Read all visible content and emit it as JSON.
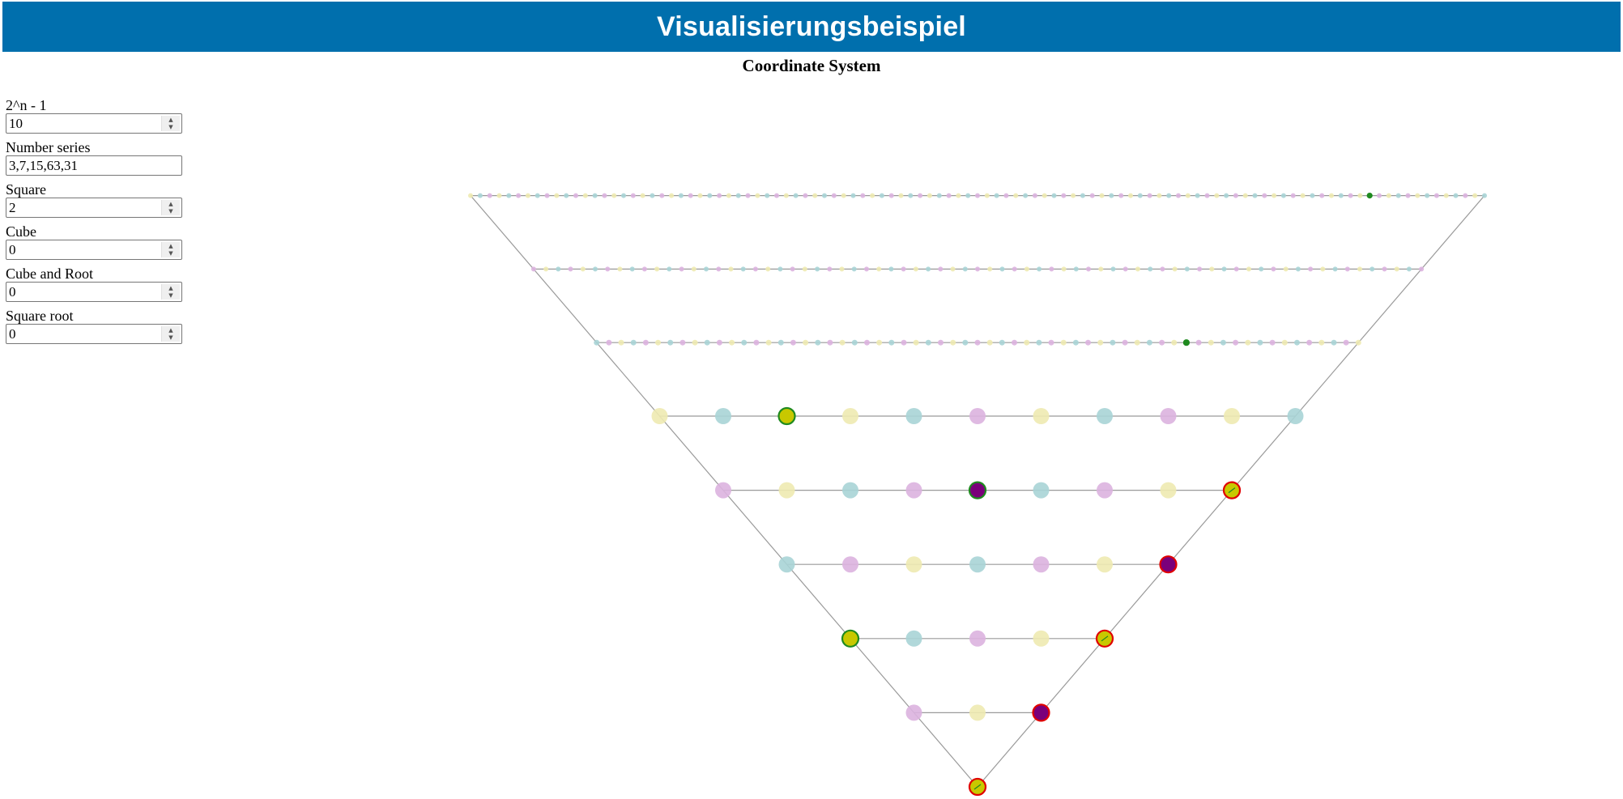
{
  "header": {
    "title": "Visualisierungsbeispiel"
  },
  "chart_title": "Coordinate System",
  "controls": [
    {
      "label": "2^n - 1",
      "value": "10",
      "type": "number"
    },
    {
      "label": "Number series",
      "value": "3,7,15,63,31",
      "type": "text"
    },
    {
      "label": "Square",
      "value": "2",
      "type": "number"
    },
    {
      "label": "Cube",
      "value": "0",
      "type": "number"
    },
    {
      "label": "Cube and Root",
      "value": "0",
      "type": "number"
    },
    {
      "label": "Square root",
      "value": "0",
      "type": "number"
    }
  ],
  "colors": {
    "header_bg": "#006fad",
    "teal": "#a9d4d6",
    "purple": "#dcb3df",
    "yellow": "#eeeab1",
    "highlight_yellow": "#c8c800",
    "highlight_purple": "#7a007a",
    "ring_green": "#1f8a1f",
    "ring_red": "#e00000",
    "line": "#9a9a9a"
  },
  "chart_data": {
    "type": "scatter",
    "rows": [
      {
        "count": 1,
        "highlights": [
          {
            "index": 0,
            "fill": "yellow",
            "ring": "red"
          }
        ]
      },
      {
        "count": 3,
        "highlights": [
          {
            "index": 2,
            "fill": "purple",
            "ring": "red"
          }
        ]
      },
      {
        "count": 5,
        "highlights": [
          {
            "index": 0,
            "fill": "yellow",
            "ring": "green"
          },
          {
            "index": 4,
            "fill": "yellow",
            "ring": "red"
          }
        ]
      },
      {
        "count": 7,
        "highlights": [
          {
            "index": 6,
            "fill": "purple",
            "ring": "red"
          }
        ]
      },
      {
        "count": 9,
        "highlights": [
          {
            "index": 4,
            "fill": "purple",
            "ring": "green"
          },
          {
            "index": 8,
            "fill": "yellow",
            "ring": "red"
          }
        ]
      },
      {
        "count": 11,
        "highlights": [
          {
            "index": 2,
            "fill": "yellow",
            "ring": "green"
          }
        ]
      },
      {
        "count": 13,
        "highlights": [
          {
            "index": 9,
            "fill": "green",
            "ring": "green"
          }
        ]
      },
      {
        "count": 15,
        "highlights": []
      },
      {
        "count": 17,
        "highlights": [
          {
            "index": 14,
            "fill": "green",
            "ring": "green"
          }
        ]
      }
    ]
  }
}
